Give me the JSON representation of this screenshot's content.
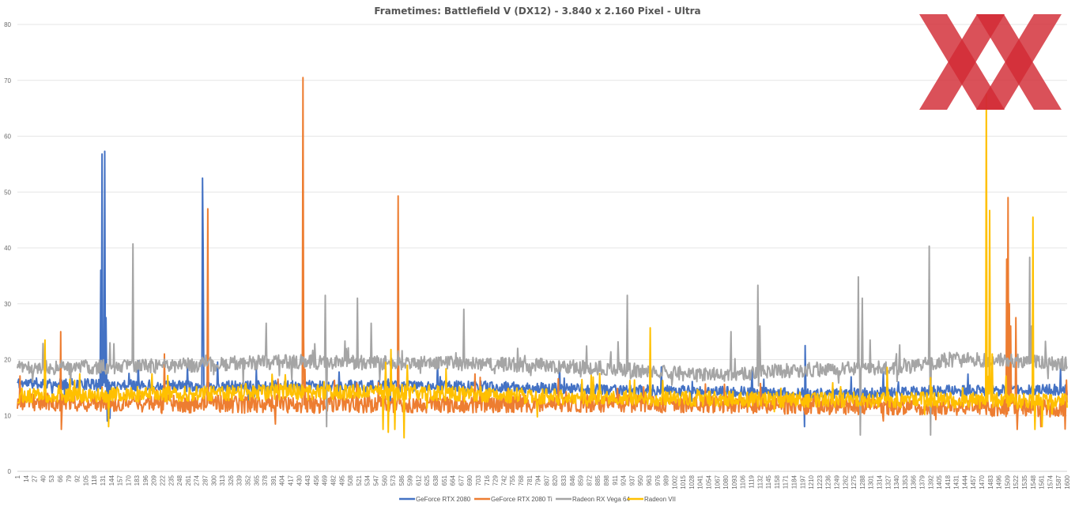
{
  "chart_data": {
    "type": "line",
    "title": "Frametimes: Battlefield V (DX12) - 3.840 x 2.160 Pixel - Ultra",
    "xlabel": "",
    "ylabel": "",
    "ylim": [
      0,
      80
    ],
    "y_ticks": [
      0,
      10,
      20,
      30,
      40,
      50,
      60,
      70,
      80
    ],
    "xlim": [
      1,
      1600
    ],
    "x_ticks": {
      "start": 1,
      "step": 13,
      "end": 1587,
      "last": 1600
    },
    "grid": true,
    "legend_position": "bottom",
    "series": [
      {
        "name": "GeForce RTX 2080",
        "color": "#4472C4",
        "seed": 11,
        "noise": 1.0,
        "baseline": [
          [
            1,
            15.8
          ],
          [
            150,
            15.5
          ],
          [
            300,
            15.2
          ],
          [
            500,
            15.3
          ],
          [
            700,
            15.2
          ],
          [
            900,
            14.6
          ],
          [
            1100,
            14.2
          ],
          [
            1250,
            13.8
          ],
          [
            1400,
            14.4
          ],
          [
            1600,
            14.6
          ]
        ],
        "spikes": [
          [
            128,
            36
          ],
          [
            130,
            56.8
          ],
          [
            132,
            17
          ],
          [
            134,
            57.3
          ],
          [
            136,
            27.5
          ],
          [
            138,
            9
          ],
          [
            140,
            10
          ],
          [
            142,
            9.5
          ],
          [
            283,
            52.5
          ],
          [
            284,
            40
          ],
          [
            1200,
            8
          ],
          [
            1201,
            22.5
          ],
          [
            1590,
            18.5
          ],
          [
            1598,
            15.5
          ]
        ]
      },
      {
        "name": "GeForce RTX 2080 Ti",
        "color": "#ED7D31",
        "seed": 23,
        "noise": 1.6,
        "baseline": [
          [
            1,
            12.5
          ],
          [
            300,
            12.0
          ],
          [
            600,
            12.0
          ],
          [
            900,
            12.2
          ],
          [
            1200,
            11.8
          ],
          [
            1400,
            11.6
          ],
          [
            1600,
            11.2
          ]
        ],
        "spikes": [
          [
            67,
            25
          ],
          [
            68,
            7.5
          ],
          [
            225,
            21
          ],
          [
            291,
            47
          ],
          [
            292,
            14
          ],
          [
            436,
            70.5
          ],
          [
            437,
            24
          ],
          [
            581,
            49.3
          ],
          [
            582,
            15
          ],
          [
            1508,
            38
          ],
          [
            1510,
            49
          ],
          [
            1512,
            30
          ],
          [
            1514,
            26
          ],
          [
            1522,
            27.5
          ],
          [
            1524,
            7.5
          ],
          [
            1560,
            8
          ]
        ]
      },
      {
        "name": "Radeon RX Vega 64",
        "color": "#A5A5A5",
        "seed": 37,
        "noise": 1.3,
        "baseline": [
          [
            1,
            18.5
          ],
          [
            200,
            18.8
          ],
          [
            400,
            19.6
          ],
          [
            700,
            19.3
          ],
          [
            900,
            18.5
          ],
          [
            1050,
            17.2
          ],
          [
            1200,
            18.2
          ],
          [
            1350,
            18.6
          ],
          [
            1420,
            20.0
          ],
          [
            1520,
            19.8
          ],
          [
            1600,
            19.3
          ]
        ],
        "spikes": [
          [
            177,
            40.7
          ],
          [
            380,
            26.5
          ],
          [
            470,
            31.5
          ],
          [
            472,
            8
          ],
          [
            519,
            31
          ],
          [
            540,
            26.5
          ],
          [
            681,
            29
          ],
          [
            930,
            31.5
          ],
          [
            1088,
            25
          ],
          [
            1129,
            33.3
          ],
          [
            1132,
            26
          ],
          [
            1282,
            34.8
          ],
          [
            1285,
            6.5
          ],
          [
            1288,
            31
          ],
          [
            1300,
            23.5
          ],
          [
            1390,
            40.3
          ],
          [
            1392,
            6.5
          ],
          [
            1543,
            38.3
          ],
          [
            1546,
            26
          ]
        ]
      },
      {
        "name": "Radeon VII",
        "color": "#FFC000",
        "seed": 53,
        "noise": 1.4,
        "baseline": [
          [
            1,
            13.5
          ],
          [
            200,
            13.8
          ],
          [
            400,
            14.2
          ],
          [
            600,
            14.2
          ],
          [
            800,
            13.4
          ],
          [
            1000,
            13.0
          ],
          [
            1200,
            12.8
          ],
          [
            1400,
            12.8
          ],
          [
            1600,
            12.5
          ]
        ],
        "spikes": [
          [
            43,
            23.5
          ],
          [
            140,
            8
          ],
          [
            558,
            7.5
          ],
          [
            562,
            19.5
          ],
          [
            566,
            7
          ],
          [
            570,
            21.8
          ],
          [
            576,
            7.5
          ],
          [
            590,
            6
          ],
          [
            595,
            19
          ],
          [
            965,
            25.7
          ],
          [
            1477,
            67.5
          ],
          [
            1480,
            17
          ],
          [
            1482,
            46.7
          ],
          [
            1486,
            21
          ],
          [
            1548,
            45.5
          ],
          [
            1551,
            7.5
          ],
          [
            1562,
            8
          ],
          [
            1590,
            13
          ]
        ]
      }
    ]
  }
}
